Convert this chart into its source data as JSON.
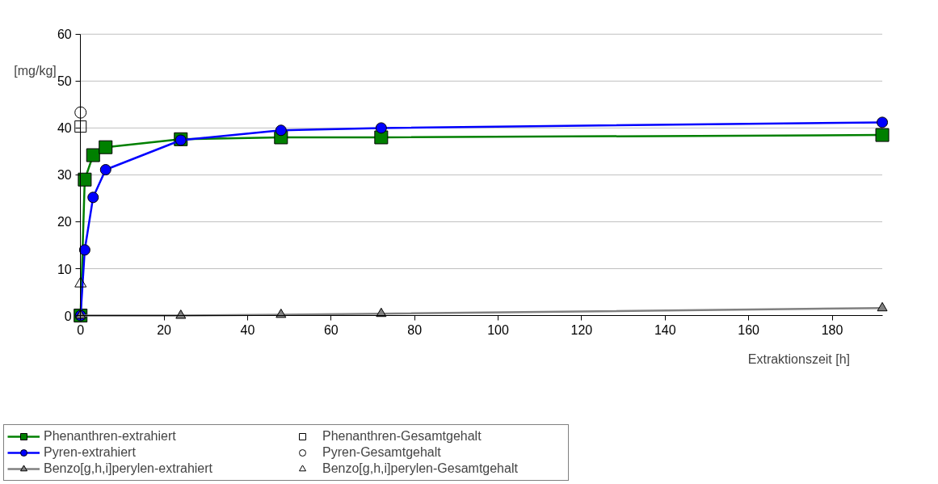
{
  "chart_data": {
    "type": "line",
    "xlabel": "Extraktionszeit [h]",
    "ylabel": "[mg/kg]",
    "xlim": [
      0,
      192
    ],
    "xticks": [
      0,
      20,
      40,
      60,
      80,
      100,
      120,
      140,
      160,
      180
    ],
    "ylim": [
      0,
      60
    ],
    "yticks": [
      0,
      10,
      20,
      30,
      40,
      50,
      60
    ],
    "grid": "y",
    "legend": "bottom left",
    "series": [
      {
        "name": "Phenanthren-extrahiert",
        "marker": "square",
        "color": "#008000",
        "x": [
          0,
          1,
          3,
          6,
          24,
          48,
          72,
          192
        ],
        "values": [
          0,
          29,
          34.2,
          35.9,
          37.6,
          38,
          38,
          38.5
        ]
      },
      {
        "name": "Pyren-extrahiert",
        "marker": "circle",
        "color": "#0000ff",
        "x": [
          0,
          1,
          3,
          6,
          24,
          48,
          72,
          192
        ],
        "values": [
          0,
          14,
          25.2,
          31.1,
          37.4,
          39.5,
          40,
          41.2
        ]
      },
      {
        "name": "Benzo[g,h,i]perylen-extrahiert",
        "marker": "triangle",
        "color": "#808080",
        "x": [
          0,
          24,
          48,
          72,
          192
        ],
        "values": [
          0,
          0,
          0.2,
          0.4,
          1.6
        ]
      },
      {
        "name": "Phenanthren-Gesamtgehalt",
        "type": "scatter",
        "marker": "square",
        "color": "#000000",
        "x": [
          0
        ],
        "values": [
          40.3
        ]
      },
      {
        "name": "Pyren-Gesamtgehalt",
        "type": "scatter",
        "marker": "circle",
        "color": "#000000",
        "x": [
          0
        ],
        "values": [
          43.3
        ]
      },
      {
        "name": "Benzo[g,h,i]perylen-Gesamtgehalt",
        "type": "scatter",
        "marker": "triangle",
        "color": "#000000",
        "x": [
          0
        ],
        "values": [
          6.8
        ]
      }
    ]
  }
}
